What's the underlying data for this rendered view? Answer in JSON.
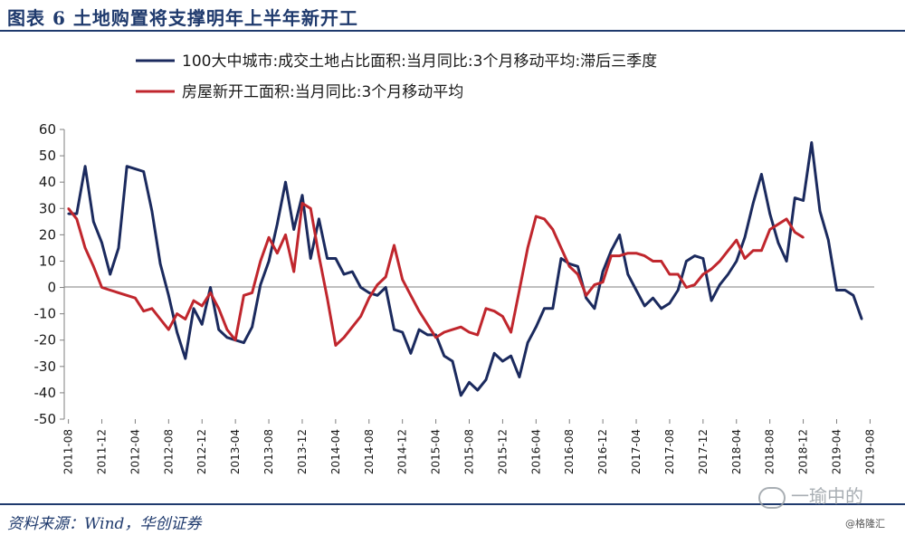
{
  "header": {
    "title": "图表 6   土地购置将支撑明年上半年新开工"
  },
  "footer": {
    "source": "资料来源：Wind，华创证券",
    "watermark": "一瑜中的",
    "credit": "@格隆汇"
  },
  "chart_data": {
    "type": "line",
    "title": "",
    "xlabel": "",
    "ylabel": "",
    "ylim": [
      -50,
      60
    ],
    "y_ticks": [
      60,
      50,
      40,
      30,
      20,
      10,
      0,
      -10,
      -20,
      -30,
      -40,
      -50
    ],
    "x_tick_labels": [
      "2011-08",
      "2011-12",
      "2012-04",
      "2012-08",
      "2012-12",
      "2013-04",
      "2013-08",
      "2013-12",
      "2014-04",
      "2014-08",
      "2014-12",
      "2015-04",
      "2015-08",
      "2015-12",
      "2016-04",
      "2016-08",
      "2016-12",
      "2017-04",
      "2017-08",
      "2017-12",
      "2018-04",
      "2018-08",
      "2018-12",
      "2019-04",
      "2019-08"
    ],
    "grid": false,
    "legend_position": "top",
    "series": [
      {
        "name": "100大中城市:成交土地占比面积:当月同比:3个月移动平均:滞后三季度",
        "color": "#1b2a5e",
        "points": [
          [
            "2011-08",
            28
          ],
          [
            "2011-09",
            28
          ],
          [
            "2011-10",
            46
          ],
          [
            "2011-11",
            25
          ],
          [
            "2011-12",
            17
          ],
          [
            "2012-01",
            5
          ],
          [
            "2012-02",
            15
          ],
          [
            "2012-03",
            46
          ],
          [
            "2012-04",
            45
          ],
          [
            "2012-05",
            44
          ],
          [
            "2012-06",
            29
          ],
          [
            "2012-07",
            9
          ],
          [
            "2012-08",
            -3
          ],
          [
            "2012-09",
            -17
          ],
          [
            "2012-10",
            -27
          ],
          [
            "2012-11",
            -8
          ],
          [
            "2012-12",
            -14
          ],
          [
            "2013-01",
            0
          ],
          [
            "2013-02",
            -16
          ],
          [
            "2013-03",
            -19
          ],
          [
            "2013-04",
            -20
          ],
          [
            "2013-05",
            -21
          ],
          [
            "2013-06",
            -15
          ],
          [
            "2013-07",
            1
          ],
          [
            "2013-08",
            10
          ],
          [
            "2013-09",
            24
          ],
          [
            "2013-10",
            40
          ],
          [
            "2013-11",
            22
          ],
          [
            "2013-12",
            35
          ],
          [
            "2014-01",
            11
          ],
          [
            "2014-02",
            26
          ],
          [
            "2014-03",
            11
          ],
          [
            "2014-04",
            11
          ],
          [
            "2014-05",
            5
          ],
          [
            "2014-06",
            6
          ],
          [
            "2014-07",
            0
          ],
          [
            "2014-08",
            -2
          ],
          [
            "2014-09",
            -3
          ],
          [
            "2014-10",
            0
          ],
          [
            "2014-11",
            -16
          ],
          [
            "2014-12",
            -17
          ],
          [
            "2015-01",
            -25
          ],
          [
            "2015-02",
            -16
          ],
          [
            "2015-03",
            -18
          ],
          [
            "2015-04",
            -18
          ],
          [
            "2015-05",
            -26
          ],
          [
            "2015-06",
            -28
          ],
          [
            "2015-07",
            -41
          ],
          [
            "2015-08",
            -36
          ],
          [
            "2015-09",
            -39
          ],
          [
            "2015-10",
            -35
          ],
          [
            "2015-11",
            -25
          ],
          [
            "2015-12",
            -28
          ],
          [
            "2016-01",
            -26
          ],
          [
            "2016-02",
            -34
          ],
          [
            "2016-03",
            -21
          ],
          [
            "2016-04",
            -15
          ],
          [
            "2016-05",
            -8
          ],
          [
            "2016-06",
            -8
          ],
          [
            "2016-07",
            11
          ],
          [
            "2016-08",
            9
          ],
          [
            "2016-09",
            8
          ],
          [
            "2016-10",
            -4
          ],
          [
            "2016-11",
            -8
          ],
          [
            "2016-12",
            6
          ],
          [
            "2017-01",
            14
          ],
          [
            "2017-02",
            20
          ],
          [
            "2017-03",
            5
          ],
          [
            "2017-04",
            -1
          ],
          [
            "2017-05",
            -7
          ],
          [
            "2017-06",
            -4
          ],
          [
            "2017-07",
            -8
          ],
          [
            "2017-08",
            -6
          ],
          [
            "2017-09",
            -1
          ],
          [
            "2017-10",
            10
          ],
          [
            "2017-11",
            12
          ],
          [
            "2017-12",
            11
          ],
          [
            "2018-01",
            -5
          ],
          [
            "2018-02",
            1
          ],
          [
            "2018-03",
            5
          ],
          [
            "2018-04",
            10
          ],
          [
            "2018-05",
            19
          ],
          [
            "2018-06",
            32
          ],
          [
            "2018-07",
            43
          ],
          [
            "2018-08",
            28
          ],
          [
            "2018-09",
            17
          ],
          [
            "2018-10",
            10
          ],
          [
            "2018-11",
            34
          ],
          [
            "2018-12",
            33
          ],
          [
            "2019-01",
            55
          ],
          [
            "2019-02",
            29
          ],
          [
            "2019-03",
            18
          ],
          [
            "2019-04",
            -1
          ],
          [
            "2019-05",
            -1
          ],
          [
            "2019-06",
            -3
          ],
          [
            "2019-07",
            -12
          ]
        ]
      },
      {
        "name": "房屋新开工面积:当月同比:3个月移动平均",
        "color": "#c0262d",
        "points": [
          [
            "2011-08",
            30
          ],
          [
            "2011-09",
            26
          ],
          [
            "2011-10",
            15
          ],
          [
            "2011-11",
            8
          ],
          [
            "2011-12",
            0
          ],
          [
            "2012-01",
            -1
          ],
          [
            "2012-02",
            -2
          ],
          [
            "2012-03",
            -3
          ],
          [
            "2012-04",
            -4
          ],
          [
            "2012-05",
            -9
          ],
          [
            "2012-06",
            -8
          ],
          [
            "2012-07",
            -12
          ],
          [
            "2012-08",
            -16
          ],
          [
            "2012-09",
            -10
          ],
          [
            "2012-10",
            -12
          ],
          [
            "2012-11",
            -5
          ],
          [
            "2012-12",
            -7
          ],
          [
            "2013-01",
            -2
          ],
          [
            "2013-02",
            -8
          ],
          [
            "2013-03",
            -16
          ],
          [
            "2013-04",
            -20
          ],
          [
            "2013-05",
            -3
          ],
          [
            "2013-06",
            -2
          ],
          [
            "2013-07",
            10
          ],
          [
            "2013-08",
            19
          ],
          [
            "2013-09",
            13
          ],
          [
            "2013-10",
            20
          ],
          [
            "2013-11",
            6
          ],
          [
            "2013-12",
            32
          ],
          [
            "2014-01",
            30
          ],
          [
            "2014-02",
            12
          ],
          [
            "2014-03",
            -4
          ],
          [
            "2014-04",
            -22
          ],
          [
            "2014-05",
            -19
          ],
          [
            "2014-06",
            -15
          ],
          [
            "2014-07",
            -11
          ],
          [
            "2014-08",
            -4
          ],
          [
            "2014-09",
            1
          ],
          [
            "2014-10",
            4
          ],
          [
            "2014-11",
            16
          ],
          [
            "2014-12",
            3
          ],
          [
            "2015-01",
            -3
          ],
          [
            "2015-02",
            -9
          ],
          [
            "2015-03",
            -14
          ],
          [
            "2015-04",
            -19
          ],
          [
            "2015-05",
            -17
          ],
          [
            "2015-06",
            -16
          ],
          [
            "2015-07",
            -15
          ],
          [
            "2015-08",
            -17
          ],
          [
            "2015-09",
            -18
          ],
          [
            "2015-10",
            -8
          ],
          [
            "2015-11",
            -9
          ],
          [
            "2015-12",
            -11
          ],
          [
            "2016-01",
            -17
          ],
          [
            "2016-02",
            -1
          ],
          [
            "2016-03",
            15
          ],
          [
            "2016-04",
            27
          ],
          [
            "2016-05",
            26
          ],
          [
            "2016-06",
            22
          ],
          [
            "2016-07",
            15
          ],
          [
            "2016-08",
            8
          ],
          [
            "2016-09",
            5
          ],
          [
            "2016-10",
            -3
          ],
          [
            "2016-11",
            1
          ],
          [
            "2016-12",
            2
          ],
          [
            "2017-01",
            12
          ],
          [
            "2017-02",
            12
          ],
          [
            "2017-03",
            13
          ],
          [
            "2017-04",
            13
          ],
          [
            "2017-05",
            12
          ],
          [
            "2017-06",
            10
          ],
          [
            "2017-07",
            10
          ],
          [
            "2017-08",
            5
          ],
          [
            "2017-09",
            5
          ],
          [
            "2017-10",
            0
          ],
          [
            "2017-11",
            1
          ],
          [
            "2017-12",
            5
          ],
          [
            "2018-01",
            7
          ],
          [
            "2018-02",
            10
          ],
          [
            "2018-03",
            14
          ],
          [
            "2018-04",
            18
          ],
          [
            "2018-05",
            11
          ],
          [
            "2018-06",
            14
          ],
          [
            "2018-07",
            14
          ],
          [
            "2018-08",
            22
          ],
          [
            "2018-09",
            24
          ],
          [
            "2018-10",
            26
          ],
          [
            "2018-11",
            21
          ],
          [
            "2018-12",
            19
          ]
        ]
      }
    ]
  }
}
